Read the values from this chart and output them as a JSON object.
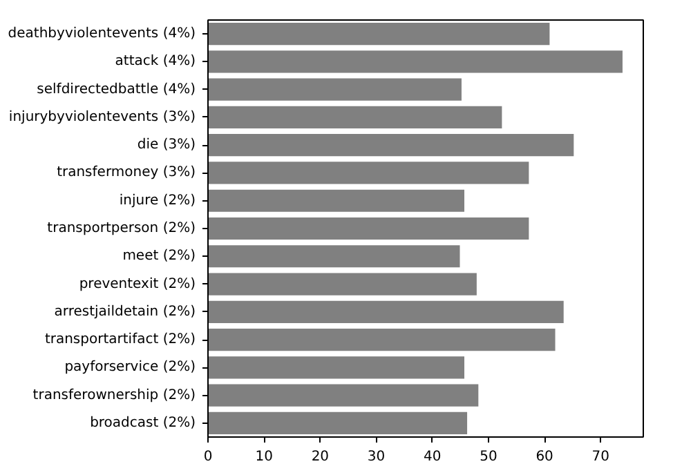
{
  "chart_data": {
    "type": "bar",
    "orientation": "horizontal",
    "categories": [
      "deathbyviolentevents (4%)",
      "attack (4%)",
      "selfdirectedbattle (4%)",
      "injurybyviolentevents (3%)",
      "die (3%)",
      "transfermoney (3%)",
      "injure (2%)",
      "transportperson (2%)",
      "meet (2%)",
      "preventexit (2%)",
      "arrestjaildetain (2%)",
      "transportartifact (2%)",
      "payforservice (2%)",
      "transferownership (2%)",
      "broadcast (2%)"
    ],
    "values": [
      60.9,
      73.9,
      45.2,
      52.4,
      65.2,
      57.2,
      45.7,
      57.2,
      44.9,
      47.9,
      63.4,
      61.9,
      45.7,
      48.2,
      46.2
    ],
    "color": "#808080",
    "xlim": [
      0,
      77.6
    ],
    "xticks": [
      0,
      10,
      20,
      30,
      40,
      50,
      60,
      70
    ],
    "grid": false
  }
}
